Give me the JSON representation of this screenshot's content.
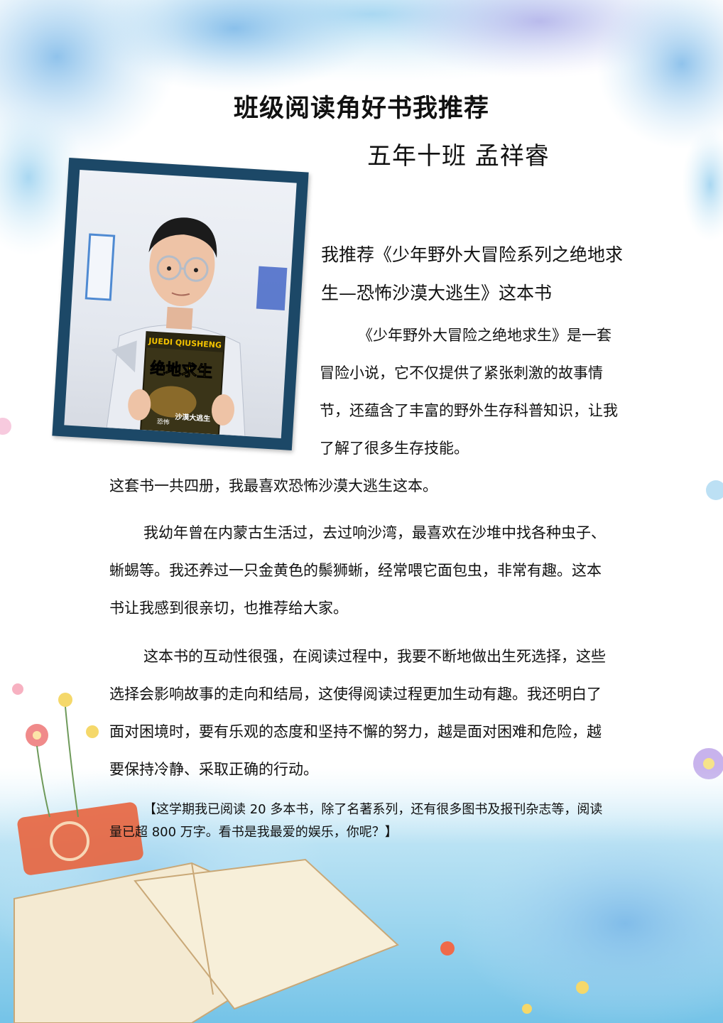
{
  "title": "班级阅读角好书我推荐",
  "author": "五年十班  孟祥睿",
  "recommend": "我推荐《少年野外大冒险系列之绝地求生—恐怖沙漠大逃生》这本书",
  "para1_a": "《少年野外大冒险之绝地求生》是一套冒险小说，它不仅提供了紧张刺激的故事情节，还蕴含了丰富的野外生存科普知识，让我了解了很多生存技能。",
  "para1_b": "这套书一共四册，我最喜欢恐怖沙漠大逃生这本。",
  "para2": "我幼年曾在内蒙古生活过，去过响沙湾，最喜欢在沙堆中找各种虫子、蜥蜴等。我还养过一只金黄色的鬃狮蜥，经常喂它面包虫，非常有趣。这本书让我感到很亲切，也推荐给大家。",
  "para3": "这本书的互动性很强，在阅读过程中，我要不断地做出生死选择，这些选择会影响故事的走向和结局，这使得阅读过程更加生动有趣。我还明白了面对困境时，要有乐观的态度和坚持不懈的努力，越是面对困难和危险，越要保持冷静、采取正确的行动。",
  "note": "【这学期我已阅读 20 多本书，除了名著系列，还有很多图书及报刊杂志等，阅读量已超 800 万字。看书是我最爱的娱乐，你呢？】",
  "photo": {
    "book_title_en": "JUEDI QIUSHENG",
    "book_title_cn": "绝地求生",
    "book_subtitle": "沙漠大逃生",
    "book_tag": "恐怖"
  },
  "colors": {
    "frame": "#1c4867",
    "foliage": "#6fa8d8",
    "book_cover": "#3a3418",
    "book_accent": "#f2c200"
  }
}
